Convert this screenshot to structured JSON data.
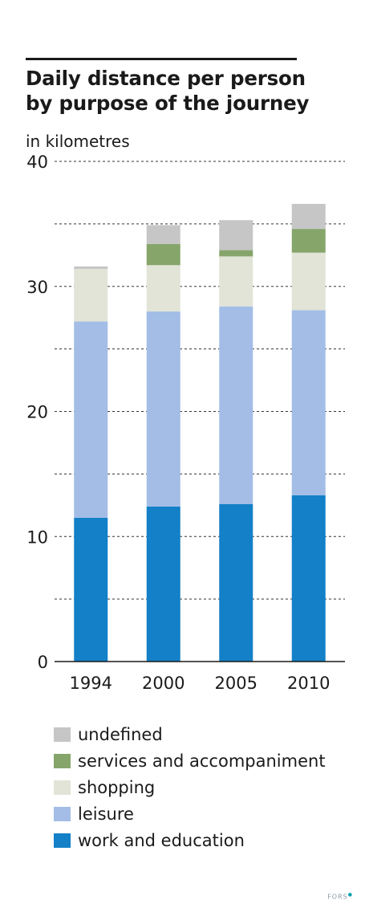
{
  "title_line1": "Daily distance per person",
  "title_line2": "by purpose of the journey",
  "subtitle": "in kilometres",
  "credit": "FORS",
  "chart_data": {
    "type": "bar",
    "stacked": true,
    "categories": [
      "1994",
      "2000",
      "2005",
      "2010"
    ],
    "ylim": [
      0,
      40
    ],
    "yticks": [
      0,
      10,
      20,
      30,
      40
    ],
    "grid": "dashed horizontal every 5",
    "legend_placement": "bottom",
    "series": [
      {
        "name": "work and education",
        "color": "#1380c7",
        "values": [
          11.5,
          12.4,
          12.6,
          13.3
        ]
      },
      {
        "name": "leisure",
        "color": "#a3bde6",
        "values": [
          15.7,
          15.6,
          15.8,
          14.8
        ]
      },
      {
        "name": "shopping",
        "color": "#e1e4d6",
        "values": [
          4.2,
          3.7,
          4.0,
          4.6
        ]
      },
      {
        "name": "services and accompaniment",
        "color": "#86a56a",
        "values": [
          0.0,
          1.7,
          0.5,
          1.9
        ]
      },
      {
        "name": "undefined",
        "color": "#c6c6c6",
        "values": [
          0.2,
          1.5,
          2.4,
          2.0
        ]
      }
    ],
    "legend_order": [
      "undefined",
      "services and accompaniment",
      "shopping",
      "leisure",
      "work and education"
    ]
  }
}
